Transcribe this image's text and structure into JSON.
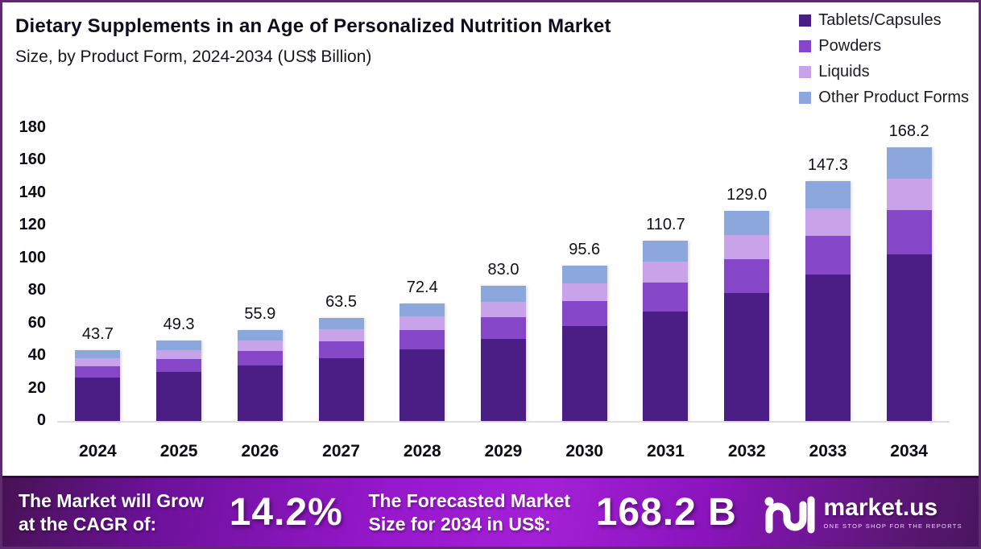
{
  "header": {
    "title": "Dietary Supplements in an Age of Personalized Nutrition Market",
    "subtitle": "Size, by Product Form, 2024-2034 (US$ Billion)"
  },
  "chart_data": {
    "type": "bar",
    "stacked": true,
    "title": "Dietary Supplements in an Age of Personalized Nutrition Market",
    "subtitle": "Size, by Product Form, 2024-2034 (US$ Billion)",
    "unit": "US$ Billion",
    "categories": [
      "2024",
      "2025",
      "2026",
      "2027",
      "2028",
      "2029",
      "2030",
      "2031",
      "2032",
      "2033",
      "2034"
    ],
    "series": [
      {
        "name": "Tablets/Capsules",
        "color": "#4a1e85",
        "values": [
          26.7,
          30.1,
          34.1,
          38.7,
          44.2,
          50.6,
          58.3,
          67.5,
          78.7,
          89.9,
          102.6
        ]
      },
      {
        "name": "Powders",
        "color": "#8547c7",
        "values": [
          7.0,
          7.9,
          8.9,
          10.2,
          11.6,
          13.3,
          15.3,
          17.7,
          20.6,
          23.6,
          26.9
        ]
      },
      {
        "name": "Liquids",
        "color": "#c9a3e9",
        "values": [
          5.0,
          5.7,
          6.4,
          7.3,
          8.3,
          9.5,
          11.0,
          12.7,
          14.8,
          16.9,
          19.3
        ]
      },
      {
        "name": "Other Product Forms",
        "color": "#8ca7db",
        "values": [
          5.0,
          5.6,
          6.5,
          7.3,
          8.3,
          9.6,
          11.0,
          12.8,
          14.9,
          16.9,
          19.4
        ]
      }
    ],
    "totals": [
      43.7,
      49.3,
      55.9,
      63.5,
      72.4,
      83.0,
      95.6,
      110.7,
      129.0,
      147.3,
      168.2
    ],
    "total_labels": [
      "43.7",
      "49.3",
      "55.9",
      "63.5",
      "72.4",
      "83.0",
      "95.6",
      "110.7",
      "129.0",
      "147.3",
      "168.2"
    ],
    "xlabel": "",
    "ylabel": "",
    "ylim": [
      0,
      180
    ],
    "y_ticks": [
      "180",
      "160",
      "140",
      "120",
      "100",
      "80",
      "60",
      "40",
      "20",
      "0"
    ],
    "grid": false,
    "legend_position": "top-right"
  },
  "legend": {
    "items": [
      {
        "label": "Tablets/Capsules",
        "color": "#4a1e85"
      },
      {
        "label": "Powders",
        "color": "#8547c7"
      },
      {
        "label": "Liquids",
        "color": "#c9a3e9"
      },
      {
        "label": "Other Product Forms",
        "color": "#8ca7db"
      }
    ]
  },
  "footer": {
    "cagr_label_line1": "The Market will Grow",
    "cagr_label_line2": "at the CAGR of:",
    "cagr_value": "14.2%",
    "forecast_label_line1": "The Forecasted Market",
    "forecast_label_line2": "Size for 2034 in US$:",
    "forecast_value": "168.2 B",
    "brand": "market.us",
    "brand_tagline": "ONE STOP SHOP FOR THE REPORTS"
  },
  "colors": {
    "border": "#5d2b6e",
    "baseline": "#e0e0e0",
    "banner_dark": "#471254",
    "banner_bright": "#a420d6",
    "text": "#111111"
  }
}
